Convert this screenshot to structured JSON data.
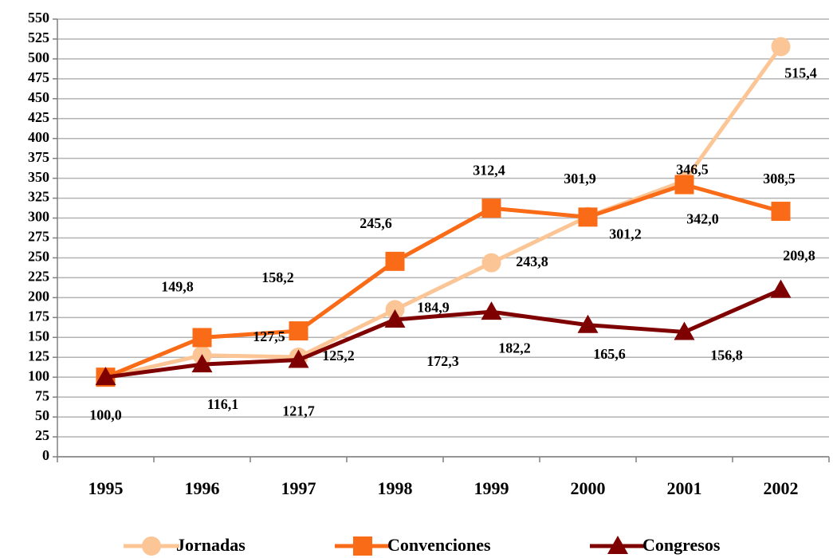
{
  "chart_data": {
    "type": "line",
    "categories": [
      "1995",
      "1996",
      "1997",
      "1998",
      "1999",
      "2000",
      "2001",
      "2002"
    ],
    "series": [
      {
        "name": "Jornadas",
        "color": "#fbc596",
        "marker": "circle",
        "values": [
          100.0,
          127.5,
          125.2,
          184.9,
          243.8,
          301.9,
          346.5,
          515.4
        ],
        "value_labels": [
          null,
          "127,5",
          "125,2",
          "184,9",
          "243,8",
          "301,9",
          "346,5",
          "515,4"
        ]
      },
      {
        "name": "Convenciones",
        "color": "#f96b16",
        "marker": "square",
        "values": [
          100.0,
          149.8,
          158.2,
          245.6,
          312.4,
          301.2,
          342.0,
          308.5
        ],
        "value_labels": [
          null,
          "149,8",
          "158,2",
          "245,6",
          "312,4",
          "301,2",
          "342,0",
          "308,5"
        ]
      },
      {
        "name": "Congresos",
        "color": "#7f0000",
        "marker": "triangle",
        "values": [
          100.0,
          116.1,
          121.7,
          172.3,
          182.2,
          165.6,
          156.8,
          209.8
        ],
        "value_labels": [
          "100,0",
          "116,1",
          "121,7",
          "172,3",
          "182,2",
          "165,6",
          "156,8",
          "209,8"
        ]
      }
    ],
    "ylim": [
      0,
      550
    ],
    "yticks": [
      0,
      25,
      50,
      75,
      100,
      125,
      150,
      175,
      200,
      225,
      250,
      275,
      300,
      325,
      350,
      375,
      400,
      425,
      450,
      475,
      500,
      525,
      550
    ],
    "grid": true,
    "legend": "bottom"
  }
}
